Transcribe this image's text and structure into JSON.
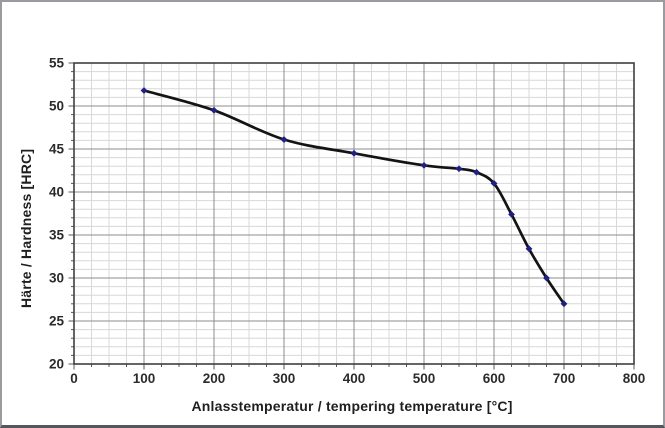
{
  "chart_data": {
    "type": "line",
    "title": "",
    "xlabel": "Anlasstemperatur / tempering temperature [°C]",
    "ylabel": "Härte / Hardness [HRC]",
    "x": [
      100,
      200,
      300,
      400,
      500,
      550,
      575,
      600,
      625,
      650,
      675,
      700
    ],
    "y": [
      51.8,
      49.5,
      46.1,
      44.5,
      43.1,
      42.7,
      42.3,
      41.0,
      37.4,
      33.4,
      30.0,
      27.0
    ],
    "xlim": [
      0,
      800
    ],
    "ylim": [
      20,
      55
    ],
    "x_tick_labels": [
      "0",
      "100",
      "200",
      "300",
      "400",
      "500",
      "600",
      "700",
      "800"
    ],
    "y_tick_labels": [
      "20",
      "25",
      "30",
      "35",
      "40",
      "45",
      "50",
      "55"
    ],
    "x_major_step": 100,
    "x_minor_step": 25,
    "y_major_step": 5,
    "y_minor_step": 1,
    "grid": "major+minor",
    "legend": "none",
    "marker": "diamond",
    "colors": {
      "line": "#141414",
      "marker": "#20208c",
      "grid_minor": "#d8d8d8",
      "grid_major": "#8c8c8c",
      "axis_border": "#3f3f3f",
      "tick_mark": "#5a5a5a",
      "tick_text": "#2b2b2b",
      "background": "#ffffff"
    }
  }
}
